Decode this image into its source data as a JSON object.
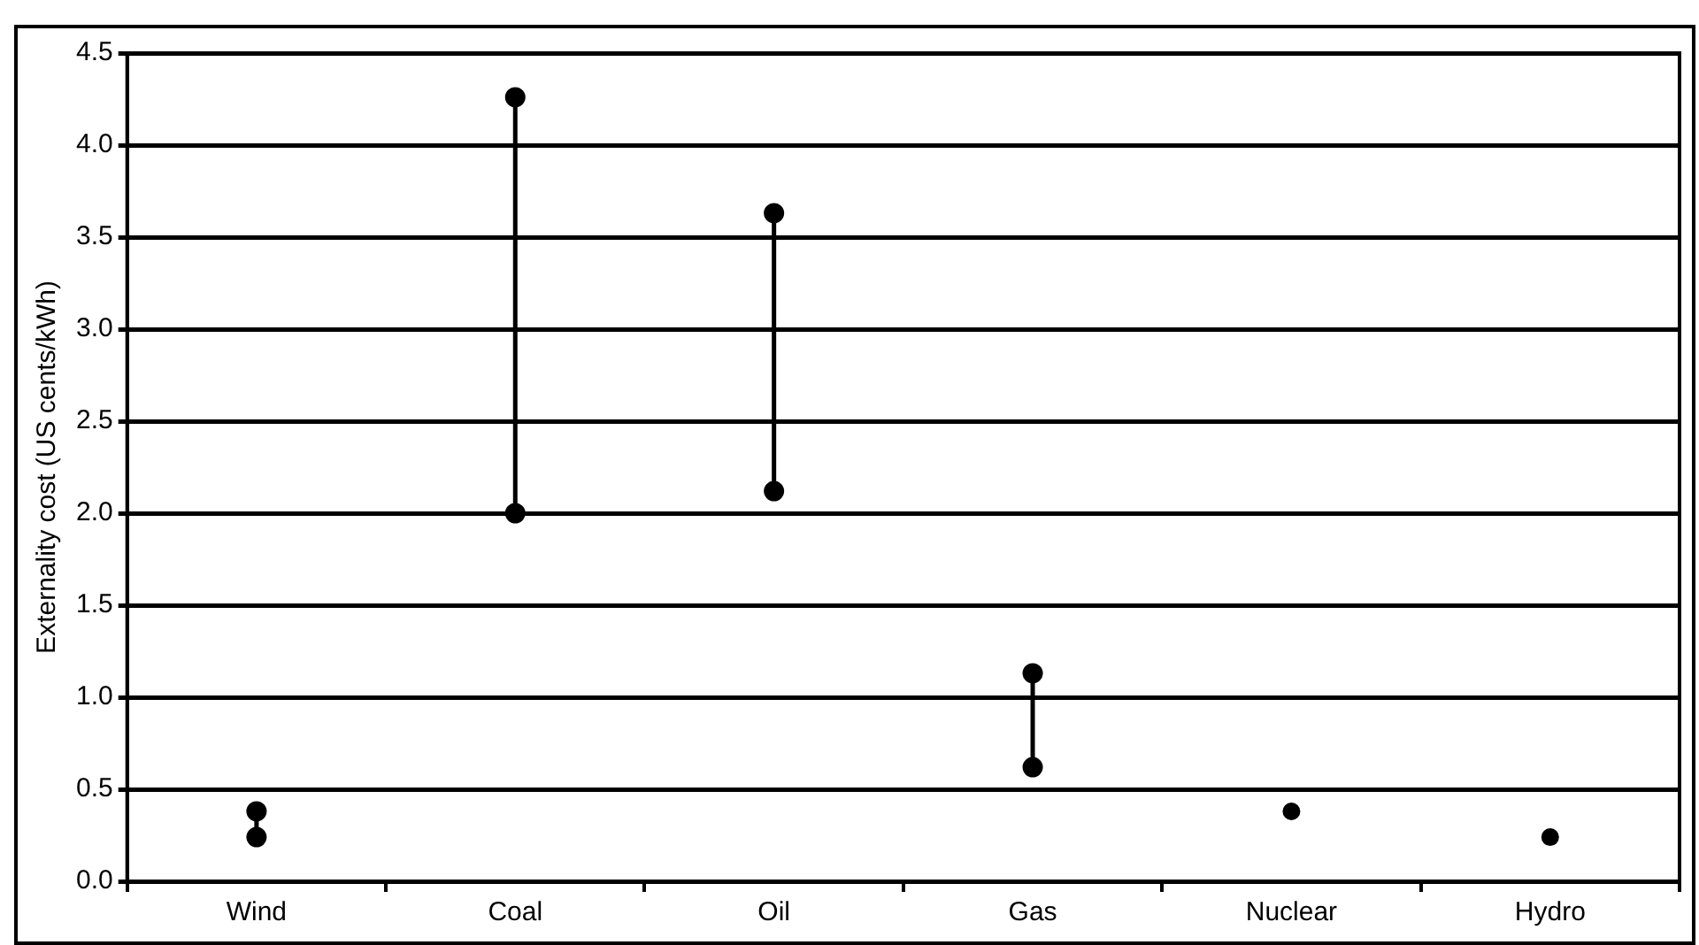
{
  "chart_data": {
    "type": "line",
    "ylabel": "Externality cost (US cents/kWh)",
    "categories": [
      "Wind",
      "Coal",
      "Oil",
      "Gas",
      "Nuclear",
      "Hydro"
    ],
    "series": [
      {
        "color": "#000000",
        "x": [
          "Wind",
          "Wind"
        ],
        "values": [
          0.24,
          0.38
        ]
      },
      {
        "color": "#000000",
        "x": [
          "Coal",
          "Coal"
        ],
        "values": [
          2.0,
          4.26
        ]
      },
      {
        "color": "#000000",
        "x": [
          "Oil",
          "Oil"
        ],
        "values": [
          2.12,
          3.63
        ]
      },
      {
        "color": "#000000",
        "x": [
          "Gas",
          "Gas"
        ],
        "values": [
          0.62,
          1.13
        ]
      },
      {
        "type": "scatter",
        "color": "#000000",
        "x": [
          "Nuclear",
          "Hydro"
        ],
        "values": [
          0.38,
          0.24
        ]
      }
    ],
    "marker": "circle",
    "line_style": "solid",
    "ylim": [
      0,
      4.5
    ],
    "yticks": [
      {
        "value": 0,
        "label": "0.0"
      },
      0.5,
      {
        "value": 1,
        "label": "1.0"
      },
      1.5,
      {
        "value": 2,
        "label": "2.0"
      },
      2.5,
      {
        "value": 3,
        "label": "3.0"
      },
      3.5,
      {
        "value": 4,
        "label": "4.0"
      },
      4.5
    ],
    "grid": "y",
    "legend": false
  }
}
